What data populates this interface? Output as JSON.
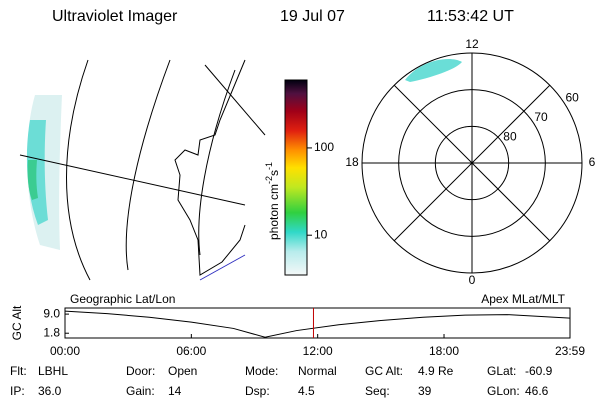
{
  "header": {
    "title": "Ultraviolet Imager",
    "date": "19 Jul 07",
    "time": "11:53:42 UT"
  },
  "colorbar": {
    "label": "photon cm",
    "exp1": "-2",
    "mid": "s",
    "exp2": "-1",
    "log": true,
    "lim": [
      3.5,
      600
    ],
    "ticks": [
      10,
      100
    ]
  },
  "polar": {
    "mlt_labels": [
      12,
      6,
      0,
      18
    ],
    "rings": [
      60,
      70,
      80
    ],
    "lat_min": 60
  },
  "altitude": {
    "title_left": "Geographic Lat/Lon",
    "title_right": "Apex  MLat/MLT",
    "ylabel": "GC Alt",
    "ylim": [
      0,
      11.3
    ],
    "yticks": [
      {
        "value": 9.0,
        "label": "9.0"
      },
      {
        "value": 1.8,
        "label": "1.8"
      }
    ],
    "xlim": [
      0,
      23.983
    ],
    "xticks": [
      {
        "value": 0,
        "label": "00:00"
      },
      {
        "value": 6,
        "label": "06:00"
      },
      {
        "value": 12,
        "label": "12:00"
      },
      {
        "value": 18,
        "label": "18:00"
      },
      {
        "value": 23.983,
        "label": "23:59"
      }
    ],
    "x": [
      0,
      2,
      4,
      6,
      8,
      9.5,
      11,
      13,
      15,
      17,
      19,
      21,
      23.983
    ],
    "y": [
      10.1,
      9.2,
      7.8,
      6.0,
      3.6,
      0.3,
      2.8,
      5.0,
      6.6,
      7.8,
      8.6,
      8.8,
      7.5
    ],
    "marker": 11.8,
    "marker_color": "#c00000"
  },
  "status": {
    "rows": [
      [
        [
          "Flt:",
          "LBHL"
        ],
        [
          "Door:",
          "Open"
        ],
        [
          "Mode:",
          "Normal"
        ],
        [
          "GC Alt:",
          "4.9 Re"
        ],
        [
          "GLat:",
          "-60.9"
        ]
      ],
      [
        [
          "IP:",
          "36.0"
        ],
        [
          "Gain:",
          "14"
        ],
        [
          "Dsp:",
          "4.5"
        ],
        [
          "Seq:",
          "39"
        ],
        [
          "GLon:",
          "46.6"
        ]
      ]
    ]
  }
}
